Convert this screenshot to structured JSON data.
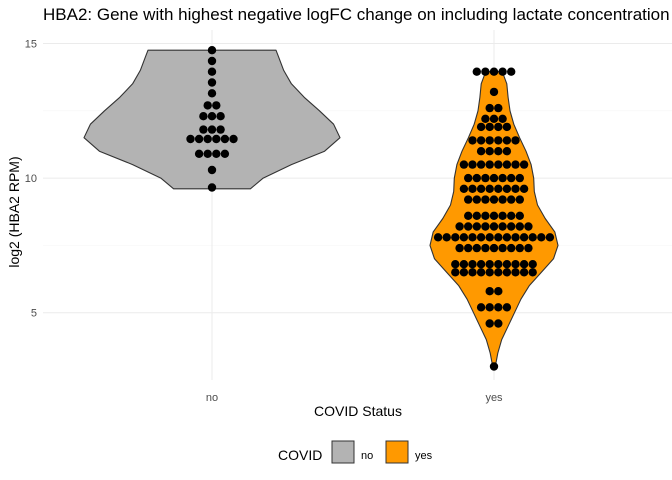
{
  "chart_data": {
    "type": "violin",
    "title": "HBA2: Gene with highest negative logFC change on including lactate concentration",
    "xlabel": "COVID Status",
    "ylabel": "log2 (HBA2 RPM)",
    "categories": [
      "no",
      "yes"
    ],
    "ylim": [
      2.5,
      15.5
    ],
    "yticks": [
      5,
      10,
      15
    ],
    "grid": true,
    "legend": {
      "title": "COVID",
      "position": "bottom",
      "entries": [
        {
          "label": "no",
          "color": "#b3b3b3"
        },
        {
          "label": "yes",
          "color": "#ff9900"
        }
      ]
    },
    "series": [
      {
        "category": "no",
        "fill": "#b3b3b3",
        "range": [
          9.6,
          14.75
        ],
        "density": [
          [
            9.6,
            0.3
          ],
          [
            10.0,
            0.4
          ],
          [
            10.5,
            0.62
          ],
          [
            11.0,
            0.88
          ],
          [
            11.5,
            1.0
          ],
          [
            12.0,
            0.95
          ],
          [
            12.5,
            0.84
          ],
          [
            13.0,
            0.72
          ],
          [
            13.5,
            0.62
          ],
          [
            14.0,
            0.56
          ],
          [
            14.5,
            0.52
          ],
          [
            14.75,
            0.5
          ]
        ],
        "points": [
          14.75,
          14.35,
          13.95,
          13.55,
          13.15,
          12.7,
          12.7,
          12.3,
          12.3,
          12.3,
          11.8,
          11.8,
          11.8,
          11.45,
          11.45,
          11.45,
          11.45,
          11.45,
          11.45,
          10.9,
          10.9,
          10.9,
          10.9,
          10.3,
          9.65
        ]
      },
      {
        "category": "yes",
        "fill": "#ff9900",
        "range": [
          3.0,
          13.95
        ],
        "density": [
          [
            3.0,
            0.02
          ],
          [
            3.5,
            0.06
          ],
          [
            4.0,
            0.12
          ],
          [
            4.5,
            0.22
          ],
          [
            5.0,
            0.32
          ],
          [
            5.5,
            0.42
          ],
          [
            6.0,
            0.55
          ],
          [
            6.5,
            0.74
          ],
          [
            7.0,
            0.93
          ],
          [
            7.5,
            1.0
          ],
          [
            8.0,
            0.95
          ],
          [
            8.5,
            0.8
          ],
          [
            9.0,
            0.68
          ],
          [
            9.5,
            0.63
          ],
          [
            10.0,
            0.62
          ],
          [
            10.5,
            0.58
          ],
          [
            11.0,
            0.5
          ],
          [
            11.5,
            0.4
          ],
          [
            12.0,
            0.31
          ],
          [
            12.5,
            0.25
          ],
          [
            13.0,
            0.22
          ],
          [
            13.5,
            0.2
          ],
          [
            13.95,
            0.13
          ]
        ],
        "points": [
          13.95,
          13.95,
          13.95,
          13.95,
          13.95,
          13.2,
          12.6,
          12.6,
          12.2,
          12.2,
          12.2,
          11.9,
          11.9,
          11.9,
          11.9,
          11.4,
          11.4,
          11.4,
          11.4,
          11.4,
          11.4,
          11.0,
          11.0,
          11.0,
          11.0,
          10.5,
          10.5,
          10.5,
          10.5,
          10.5,
          10.5,
          10.5,
          10.5,
          10.0,
          10.0,
          10.0,
          10.0,
          10.0,
          10.0,
          10.0,
          9.6,
          9.6,
          9.6,
          9.6,
          9.6,
          9.6,
          9.6,
          9.6,
          9.2,
          9.2,
          9.2,
          9.2,
          9.2,
          9.2,
          9.2,
          8.6,
          8.6,
          8.6,
          8.6,
          8.6,
          8.6,
          8.6,
          8.2,
          8.2,
          8.2,
          8.2,
          8.2,
          8.2,
          8.2,
          8.2,
          8.2,
          7.8,
          7.8,
          7.8,
          7.8,
          7.8,
          7.8,
          7.8,
          7.8,
          7.8,
          7.8,
          7.8,
          7.8,
          7.8,
          7.8,
          7.4,
          7.4,
          7.4,
          7.4,
          7.4,
          7.4,
          7.4,
          7.4,
          7.4,
          6.8,
          6.8,
          6.8,
          6.8,
          6.8,
          6.8,
          6.8,
          6.8,
          6.8,
          6.8,
          6.5,
          6.5,
          6.5,
          6.5,
          6.5,
          6.5,
          6.5,
          6.5,
          6.5,
          6.5,
          5.8,
          5.8,
          5.2,
          5.2,
          5.2,
          5.2,
          4.6,
          4.6,
          3.0
        ]
      }
    ]
  }
}
